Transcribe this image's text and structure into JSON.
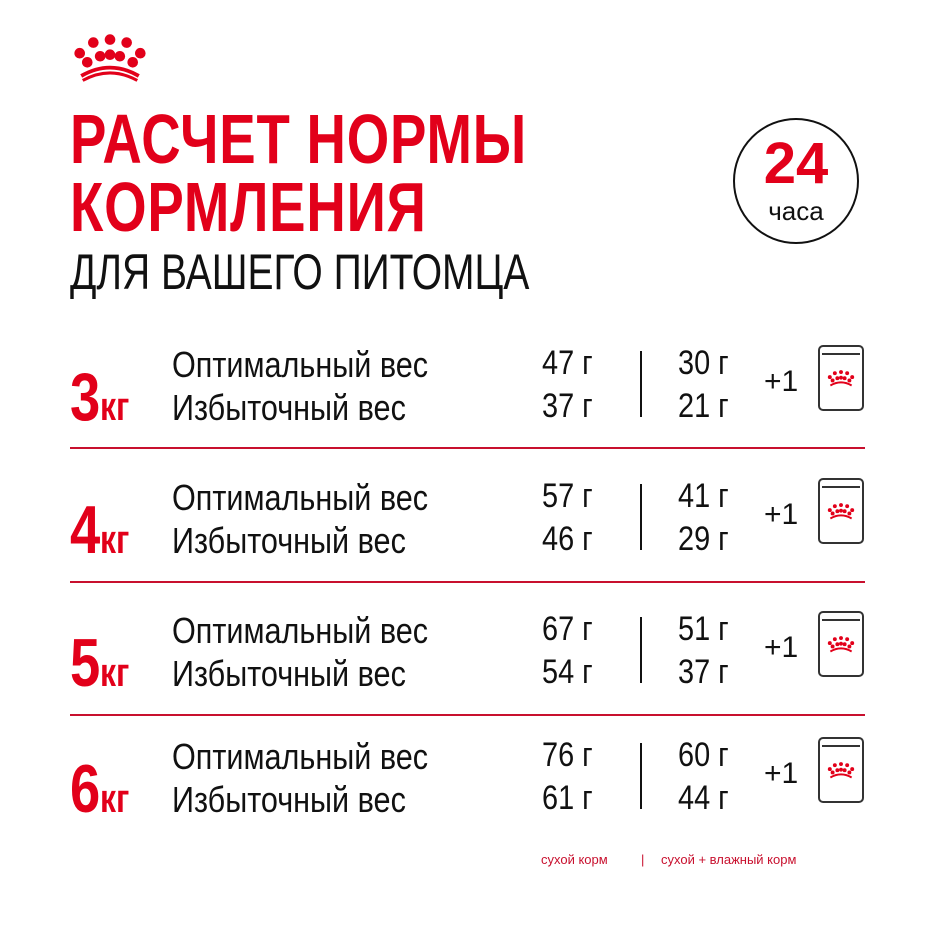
{
  "brand_color": "#e2001a",
  "logo": {
    "icon": "royal-canin-crown-icon"
  },
  "title": {
    "line1": "РАСЧЕТ НОРМЫ",
    "line2": "КОРМЛЕНИЯ",
    "line3": "ДЛЯ ВАШЕГО ПИТОМЦА"
  },
  "badge": {
    "number": "24",
    "unit": "часа"
  },
  "rows": [
    {
      "weight": "3",
      "unit": "кг",
      "optimal_label": "Оптимальный вес",
      "overweight_label": "Избыточный вес",
      "dry_optimal": "47 г",
      "dry_over": "37 г",
      "mixed_optimal": "30 г",
      "mixed_over": "21 г",
      "pouch": "+1"
    },
    {
      "weight": "4",
      "unit": "кг",
      "optimal_label": "Оптимальный вес",
      "overweight_label": "Избыточный вес",
      "dry_optimal": "57 г",
      "dry_over": "46 г",
      "mixed_optimal": "41 г",
      "mixed_over": "29 г",
      "pouch": "+1"
    },
    {
      "weight": "5",
      "unit": "кг",
      "optimal_label": "Оптимальный вес",
      "overweight_label": "Избыточный вес",
      "dry_optimal": "67 г",
      "dry_over": "54 г",
      "mixed_optimal": "51 г",
      "mixed_over": "37 г",
      "pouch": "+1"
    },
    {
      "weight": "6",
      "unit": "кг",
      "optimal_label": "Оптимальный вес",
      "overweight_label": "Избыточный вес",
      "dry_optimal": "76 г",
      "dry_over": "61 г",
      "mixed_optimal": "60 г",
      "mixed_over": "44 г",
      "pouch": "+1"
    }
  ],
  "legend": {
    "dry": "сухой корм",
    "divider": "|",
    "mixed": "сухой + влажный корм"
  }
}
